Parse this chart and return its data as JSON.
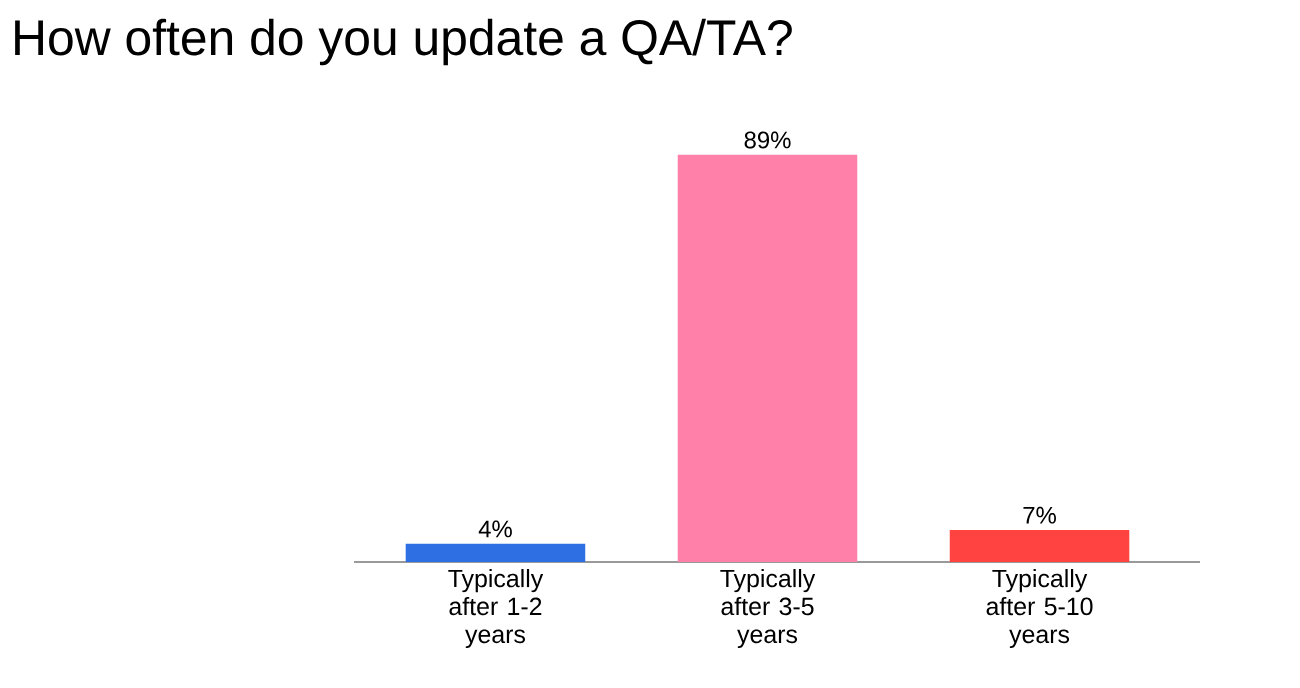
{
  "chart_data": {
    "type": "bar",
    "title": "How often do you update a QA/TA?",
    "categories": [
      "Typically after 1-2 years",
      "Typically after 3-5 years",
      "Typically after 5-10 years"
    ],
    "values": [
      4,
      89,
      7
    ],
    "colors": [
      "#2f6fe4",
      "#ff80a8",
      "#ff4340"
    ],
    "value_labels": [
      "4%",
      "89%",
      "7%"
    ]
  }
}
